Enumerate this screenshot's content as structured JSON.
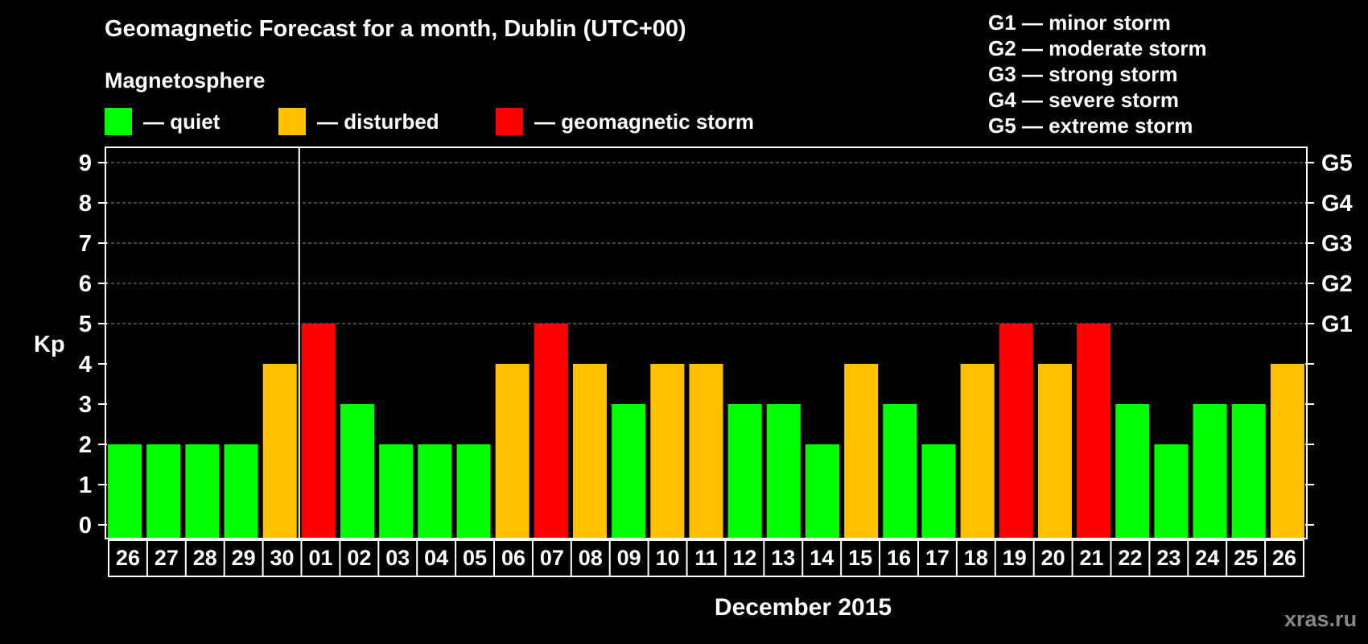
{
  "title": "Geomagnetic Forecast for a month, Dublin (UTC+00)",
  "legend": {
    "heading": "Magnetosphere",
    "items": [
      {
        "label": "— quiet",
        "color": "#00ff00"
      },
      {
        "label": "— disturbed",
        "color": "#ffc000"
      },
      {
        "label": "— geomagnetic storm",
        "color": "#ff0000"
      }
    ]
  },
  "storm_levels": [
    "G1 — minor storm",
    "G2 — moderate storm",
    "G3 — strong storm",
    "G4 — severe storm",
    "G5 — extreme storm"
  ],
  "watermark": "xras.ru",
  "chart_data": {
    "type": "bar",
    "title": "Geomagnetic Forecast for a month, Dublin (UTC+00)",
    "xlabel": "December 2015",
    "ylabel": "Kp",
    "ylim": [
      0,
      9
    ],
    "yticks": [
      "0",
      "1",
      "2",
      "3",
      "4",
      "5",
      "6",
      "7",
      "8",
      "9"
    ],
    "right_axis_labels": [
      {
        "kp": 5,
        "label": "G1"
      },
      {
        "kp": 6,
        "label": "G2"
      },
      {
        "kp": 7,
        "label": "G3"
      },
      {
        "kp": 8,
        "label": "G4"
      },
      {
        "kp": 9,
        "label": "G5"
      }
    ],
    "month_divider_after_index": 4,
    "categories": [
      "26",
      "27",
      "28",
      "29",
      "30",
      "01",
      "02",
      "03",
      "04",
      "05",
      "06",
      "07",
      "08",
      "09",
      "10",
      "11",
      "12",
      "13",
      "14",
      "15",
      "16",
      "17",
      "18",
      "19",
      "20",
      "21",
      "22",
      "23",
      "24",
      "25",
      "26"
    ],
    "values": [
      2,
      2,
      2,
      2,
      4,
      5,
      3,
      2,
      2,
      2,
      4,
      5,
      4,
      3,
      4,
      4,
      3,
      3,
      2,
      4,
      3,
      2,
      4,
      5,
      4,
      5,
      3,
      2,
      3,
      3,
      4
    ],
    "status": [
      "quiet",
      "quiet",
      "quiet",
      "quiet",
      "disturbed",
      "storm",
      "quiet",
      "quiet",
      "quiet",
      "quiet",
      "disturbed",
      "storm",
      "disturbed",
      "quiet",
      "disturbed",
      "disturbed",
      "quiet",
      "quiet",
      "quiet",
      "disturbed",
      "quiet",
      "quiet",
      "disturbed",
      "storm",
      "disturbed",
      "storm",
      "quiet",
      "quiet",
      "quiet",
      "quiet",
      "disturbed"
    ],
    "colors": {
      "quiet": "#00ff00",
      "disturbed": "#ffc000",
      "storm": "#ff0000"
    }
  }
}
